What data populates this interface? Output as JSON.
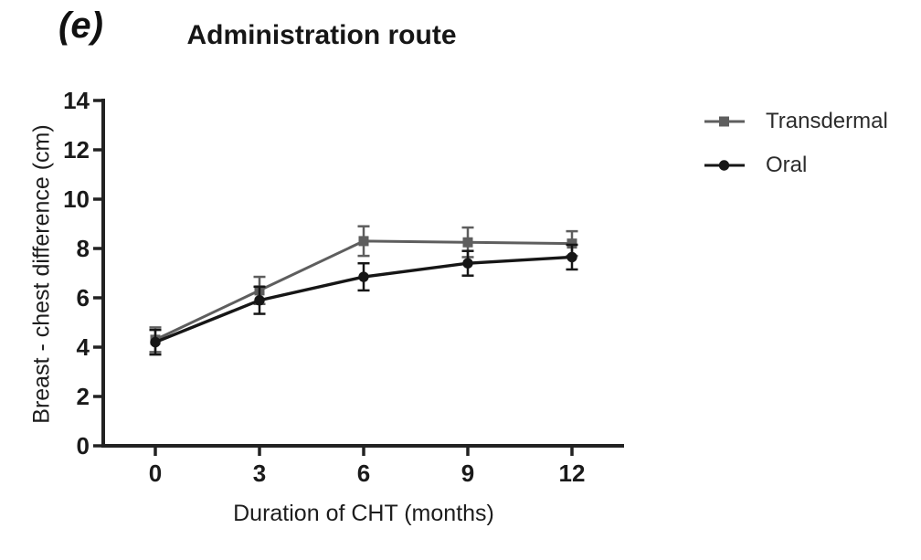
{
  "figure": {
    "panel_label": "(e)"
  },
  "chart_data": {
    "type": "line",
    "title": "Administration route",
    "xlabel": "Duration of CHT (months)",
    "ylabel": "Breast - chest difference (cm)",
    "x": [
      0,
      3,
      6,
      9,
      12
    ],
    "x_ticks": [
      0,
      3,
      6,
      9,
      12
    ],
    "y_ticks": [
      0,
      2,
      4,
      6,
      8,
      10,
      12,
      14
    ],
    "xlim": [
      0,
      13.5
    ],
    "ylim": [
      0,
      14
    ],
    "grid": false,
    "legend_position": "right",
    "axis_color": "#222222",
    "series": [
      {
        "name": "Transdermal",
        "marker": "square",
        "color": "#5e5e5e",
        "values": [
          4.3,
          6.3,
          8.3,
          8.25,
          8.2
        ],
        "errors": [
          0.5,
          0.55,
          0.6,
          0.6,
          0.5
        ]
      },
      {
        "name": "Oral",
        "marker": "circle",
        "color": "#161616",
        "values": [
          4.2,
          5.9,
          6.85,
          7.4,
          7.65
        ],
        "errors": [
          0.5,
          0.55,
          0.55,
          0.5,
          0.5
        ]
      }
    ]
  }
}
